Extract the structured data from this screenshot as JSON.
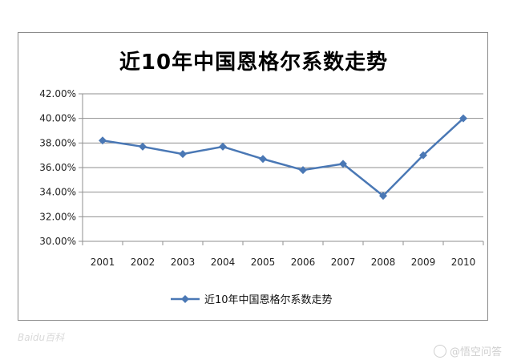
{
  "chart_data": {
    "type": "line",
    "title": "近10年中国恩格尔系数走势",
    "xlabel": "",
    "ylabel": "",
    "categories": [
      "2001",
      "2002",
      "2003",
      "2004",
      "2005",
      "2006",
      "2007",
      "2008",
      "2009",
      "2010"
    ],
    "series": [
      {
        "name": "近10年中国恩格尔系数走势",
        "values": [
          38.2,
          37.7,
          37.1,
          37.7,
          36.7,
          35.8,
          36.3,
          33.7,
          37.0,
          40.0
        ],
        "color": "#4a78b5",
        "marker": "diamond"
      }
    ],
    "ylim": [
      30,
      42
    ],
    "yticks": [
      "30.00%",
      "32.00%",
      "34.00%",
      "36.00%",
      "38.00%",
      "40.00%",
      "42.00%"
    ],
    "grid": true,
    "legend_position": "bottom"
  },
  "watermarks": {
    "left": "Baidu百科",
    "right": "@悟空问答"
  }
}
